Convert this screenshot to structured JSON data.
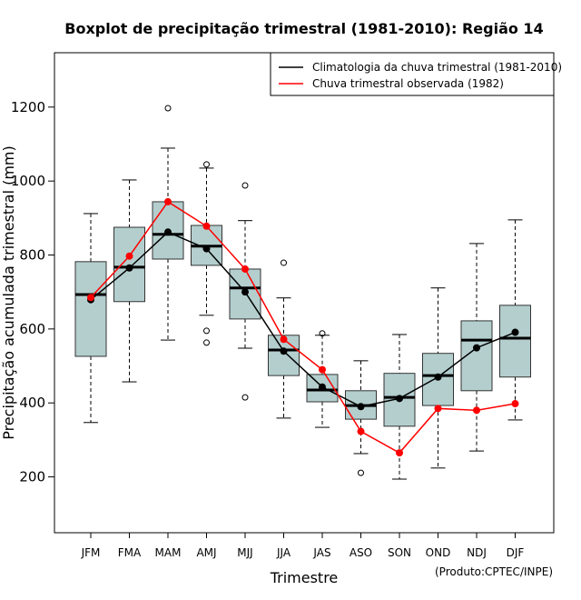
{
  "chart_data": {
    "type": "boxplot",
    "title": "Boxplot de precipitação trimestral (1981-2010): Região 14",
    "xlabel": "Trimestre",
    "ylabel": "Precipitação acumulada trimestral (mm)",
    "caption": "(Produto:CPTEC/INPE)",
    "ylim": [
      49,
      1347
    ],
    "yticks": [
      200,
      400,
      600,
      800,
      1000,
      1200
    ],
    "ytick_labels": [
      "200",
      "400",
      "600",
      "800",
      "1000",
      "1200"
    ],
    "categories": [
      "JFM",
      "FMA",
      "MAM",
      "AMJ",
      "MJJ",
      "JJA",
      "JAS",
      "ASO",
      "SON",
      "OND",
      "NDJ",
      "DJF"
    ],
    "box_color": "#b4cece",
    "boxes": [
      {
        "low": 347,
        "q1": 526,
        "median": 693,
        "q3": 782,
        "high": 912,
        "outliers": []
      },
      {
        "low": 457,
        "q1": 674,
        "median": 767,
        "q3": 875,
        "high": 1003,
        "outliers": []
      },
      {
        "low": 570,
        "q1": 789,
        "median": 856,
        "q3": 944,
        "high": 1089,
        "outliers": [
          1197
        ]
      },
      {
        "low": 637,
        "q1": 772,
        "median": 824,
        "q3": 880,
        "high": 1035,
        "outliers": [
          1045,
          595,
          563
        ]
      },
      {
        "low": 548,
        "q1": 627,
        "median": 711,
        "q3": 762,
        "high": 893,
        "outliers": [
          988,
          415
        ]
      },
      {
        "low": 359,
        "q1": 474,
        "median": 543,
        "q3": 583,
        "high": 684,
        "outliers": [
          779
        ]
      },
      {
        "low": 334,
        "q1": 403,
        "median": 435,
        "q3": 477,
        "high": 583,
        "outliers": [
          588
        ]
      },
      {
        "low": 263,
        "q1": 356,
        "median": 393,
        "q3": 433,
        "high": 514,
        "outliers": [
          211
        ]
      },
      {
        "low": 194,
        "q1": 337,
        "median": 415,
        "q3": 480,
        "high": 585,
        "outliers": []
      },
      {
        "low": 224,
        "q1": 393,
        "median": 474,
        "q3": 534,
        "high": 711,
        "outliers": []
      },
      {
        "low": 270,
        "q1": 433,
        "median": 570,
        "q3": 622,
        "high": 831,
        "outliers": []
      },
      {
        "low": 354,
        "q1": 470,
        "median": 575,
        "q3": 664,
        "high": 895,
        "outliers": []
      }
    ],
    "series": [
      {
        "name": "Climatologia da chuva trimestral (1981-2010)",
        "color": "#000000",
        "values": [
          679,
          765,
          862,
          817,
          700,
          540,
          443,
          390,
          412,
          470,
          549,
          591
        ]
      },
      {
        "name": "Chuva trimestral observada (1982)",
        "color": "#ff0000",
        "values": [
          685,
          797,
          944,
          878,
          762,
          572,
          490,
          323,
          265,
          385,
          380,
          398
        ]
      }
    ],
    "legend_position": "top-right"
  }
}
